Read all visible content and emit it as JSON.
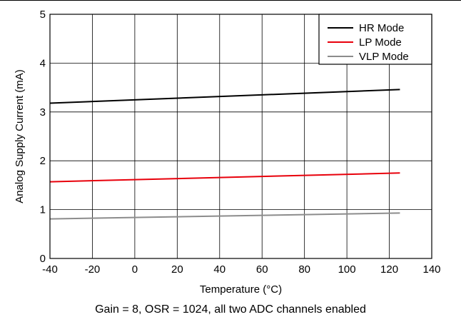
{
  "caption": "Gain = 8, OSR = 1024, all two ADC channels enabled",
  "chart_data": {
    "type": "line",
    "xlabel": "Temperature (°C)",
    "ylabel": "Analog Supply Current (mA)",
    "xlim": [
      -40,
      140
    ],
    "ylim": [
      0,
      5
    ],
    "xticks": [
      "-40",
      "-20",
      "0",
      "20",
      "40",
      "60",
      "80",
      "100",
      "120",
      "140"
    ],
    "yticks": [
      "0",
      "1",
      "2",
      "3",
      "4",
      "5"
    ],
    "grid": true,
    "legend_position": "top-right",
    "series": [
      {
        "name": "HR Mode",
        "color": "#000000",
        "x": [
          -40,
          125
        ],
        "y": [
          3.18,
          3.46
        ]
      },
      {
        "name": "LP Mode",
        "color": "#e8000b",
        "x": [
          -40,
          125
        ],
        "y": [
          1.57,
          1.75
        ]
      },
      {
        "name": "VLP Mode",
        "color": "#8c8c8c",
        "x": [
          -40,
          125
        ],
        "y": [
          0.81,
          0.93
        ]
      }
    ]
  }
}
